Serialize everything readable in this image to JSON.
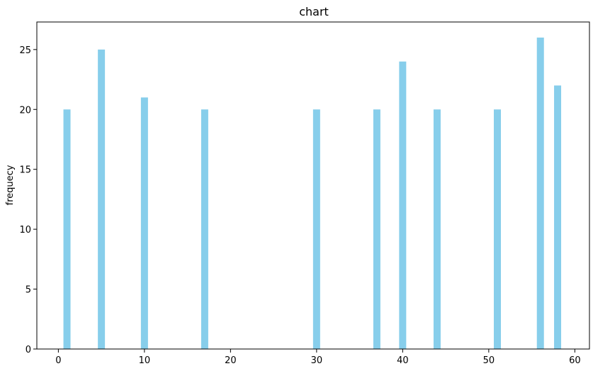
{
  "chart_data": {
    "type": "bar",
    "title": "chart",
    "xlabel": "",
    "ylabel": "frequecy",
    "xlim": [
      -2.5,
      61.7
    ],
    "ylim": [
      0,
      27.3
    ],
    "x_ticks": [
      0,
      10,
      20,
      30,
      40,
      50,
      60
    ],
    "y_ticks": [
      0,
      5,
      10,
      15,
      20,
      25
    ],
    "grid": false,
    "bar_color": "#87CEEB",
    "x": [
      1,
      5,
      10,
      17,
      30,
      37,
      40,
      44,
      51,
      56,
      58
    ],
    "values": [
      20,
      25,
      21,
      20,
      20,
      20,
      24,
      20,
      20,
      26,
      22
    ]
  }
}
